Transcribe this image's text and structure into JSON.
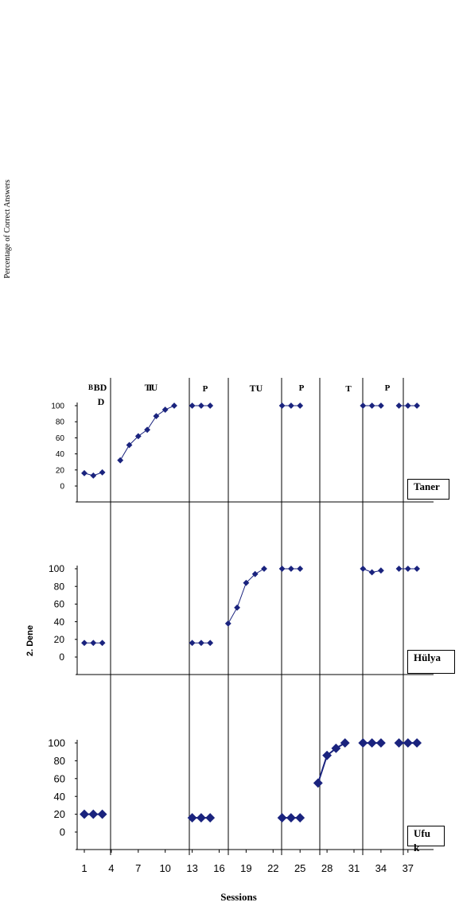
{
  "chart_data": {
    "type": "line",
    "y_label": "Percentage of Correct Answers",
    "y_label_inner": "2. Dene",
    "x_label": "Sessions",
    "x_ticks": [
      "1",
      "4",
      "7",
      "10",
      "13",
      "16",
      "19",
      "22",
      "25",
      "28",
      "31",
      "34",
      "37"
    ],
    "y_ticks": [
      "100",
      "80",
      "60",
      "40",
      "20",
      "0"
    ],
    "phase_labels": [
      "B",
      "BD",
      "T",
      "TU",
      "P",
      "TU",
      "P",
      "T",
      "P"
    ],
    "participants": [
      "Taner",
      "Hülya",
      "Ufuk"
    ],
    "panels": [
      {
        "name": "Taner",
        "series": [
          {
            "x": [
              1,
              2,
              3
            ],
            "y": [
              16,
              13,
              17
            ]
          },
          {
            "x": [
              5,
              6,
              7,
              8,
              9,
              10,
              11
            ],
            "y": [
              32,
              51,
              62,
              70,
              87,
              95,
              100
            ]
          },
          {
            "x": [
              13,
              14,
              15
            ],
            "y": [
              100,
              100,
              100
            ]
          },
          {
            "x": [
              23,
              24,
              25
            ],
            "y": [
              100,
              100,
              100
            ]
          },
          {
            "x": [
              32,
              33,
              34
            ],
            "y": [
              100,
              100,
              100
            ]
          },
          {
            "x": [
              36,
              37,
              38
            ],
            "y": [
              100,
              100,
              100
            ]
          }
        ]
      },
      {
        "name": "Hülya",
        "series": [
          {
            "x": [
              1,
              2,
              3
            ],
            "y": [
              16,
              16,
              16
            ]
          },
          {
            "x": [
              13,
              14,
              15
            ],
            "y": [
              16,
              16,
              16
            ]
          },
          {
            "x": [
              17,
              18,
              19,
              20,
              21
            ],
            "y": [
              38,
              56,
              84,
              94,
              100
            ]
          },
          {
            "x": [
              23,
              24,
              25
            ],
            "y": [
              100,
              100,
              100
            ]
          },
          {
            "x": [
              32,
              33,
              34
            ],
            "y": [
              100,
              96,
              98
            ]
          },
          {
            "x": [
              36,
              37,
              38
            ],
            "y": [
              100,
              100,
              100
            ]
          }
        ]
      },
      {
        "name": "Ufuk",
        "series": [
          {
            "x": [
              1,
              2,
              3
            ],
            "y": [
              20,
              20,
              20
            ]
          },
          {
            "x": [
              13,
              14,
              15
            ],
            "y": [
              16,
              16,
              16
            ]
          },
          {
            "x": [
              23,
              24,
              25
            ],
            "y": [
              16,
              16,
              16
            ]
          },
          {
            "x": [
              27,
              28,
              29,
              30
            ],
            "y": [
              55,
              86,
              94,
              100
            ]
          },
          {
            "x": [
              32,
              33,
              34
            ],
            "y": [
              100,
              100,
              100
            ]
          },
          {
            "x": [
              36,
              37,
              38
            ],
            "y": [
              100,
              100,
              100
            ]
          }
        ]
      }
    ]
  }
}
